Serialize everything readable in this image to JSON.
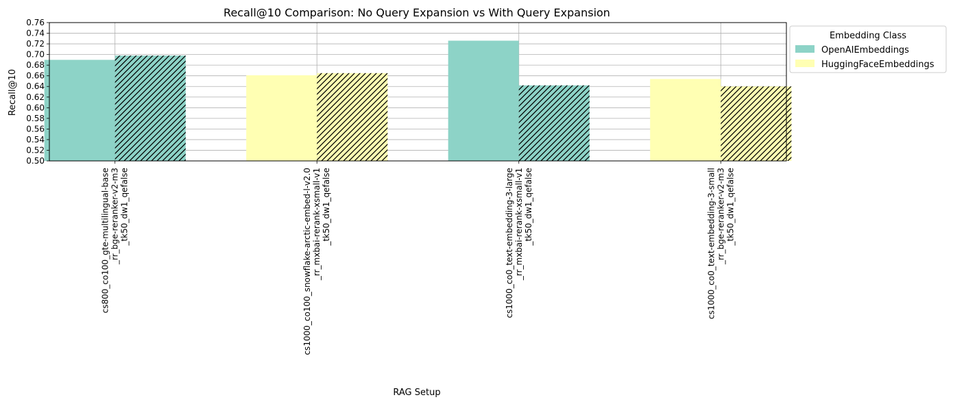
{
  "chart_data": {
    "type": "bar",
    "title": "Recall@10 Comparison: No Query Expansion vs With Query Expansion",
    "xlabel": "RAG Setup",
    "ylabel": "Recall@10",
    "ylim": [
      0.5,
      0.76
    ],
    "yticks": [
      "0.50",
      "0.52",
      "0.54",
      "0.56",
      "0.58",
      "0.60",
      "0.62",
      "0.64",
      "0.66",
      "0.68",
      "0.70",
      "0.72",
      "0.74",
      "0.76"
    ],
    "grid": true,
    "legend": {
      "title": "Embedding Class",
      "placement": "outside upper right",
      "entries": [
        {
          "label": "OpenAIEmbeddings",
          "color": "#8dd3c7"
        },
        {
          "label": "HuggingFaceEmbeddings",
          "color": "#ffffb3"
        }
      ]
    },
    "categories": [
      {
        "lines": [
          "cs800_co100_gte-multilingual-base",
          "_rr_bge-reranker-v2-m3",
          "_tk50_dw1_qefalse"
        ]
      },
      {
        "lines": [
          "cs1000_co100_snowflake-arctic-embed-l-v2.0",
          "_rr_mxbai-rerank-xsmall-v1",
          "_tk50_dw1_qefalse"
        ]
      },
      {
        "lines": [
          "cs1000_co0_text-embedding-3-large",
          "_rr_mxbai-rerank-xsmall-v1",
          "_tk50_dw1_qefalse"
        ]
      },
      {
        "lines": [
          "cs1000_co0_text-embedding-3-small",
          "_rr_bge-reranker-v2-m3",
          "_tk50_dw1_qefalse"
        ]
      }
    ],
    "embedding_class": [
      "OpenAIEmbeddings",
      "HuggingFaceEmbeddings",
      "OpenAIEmbeddings",
      "HuggingFaceEmbeddings"
    ],
    "series": [
      {
        "values": [
          0.69,
          0.661,
          0.726,
          0.654
        ],
        "hatch": "none"
      },
      {
        "values": [
          0.698,
          0.665,
          0.642,
          0.64
        ],
        "hatch": "diagonal"
      }
    ]
  }
}
